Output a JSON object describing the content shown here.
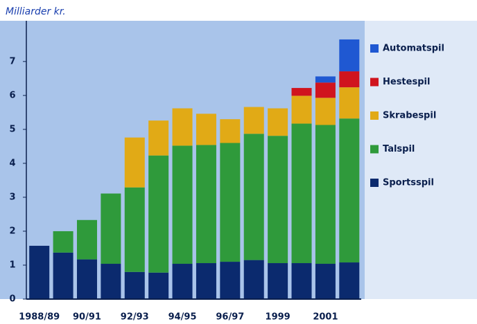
{
  "chart_data": {
    "type": "stacked_bar",
    "title": "Milliarder kr.",
    "categories": [
      "1988/89",
      null,
      "90/91",
      null,
      "92/93",
      null,
      "94/95",
      null,
      "96/97",
      null,
      "1999",
      null,
      "2001",
      null
    ],
    "series": [
      {
        "name": "Sportsspil",
        "color": "#0b2a6e",
        "values": [
          1.57,
          1.37,
          1.17,
          1.04,
          0.8,
          0.78,
          1.04,
          1.06,
          1.1,
          1.15,
          1.06,
          1.06,
          1.04,
          1.08
        ]
      },
      {
        "name": "Talspil",
        "color": "#2f9a3b",
        "values": [
          0,
          0.63,
          1.16,
          2.07,
          2.49,
          3.45,
          3.48,
          3.48,
          3.5,
          3.72,
          3.75,
          4.11,
          4.09,
          4.24
        ]
      },
      {
        "name": "Skrabespil",
        "color": "#e1aa16",
        "values": [
          0,
          0,
          0,
          0,
          1.47,
          1.03,
          1.1,
          0.92,
          0.7,
          0.79,
          0.81,
          0.82,
          0.8,
          0.92
        ]
      },
      {
        "name": "Hestespil",
        "color": "#d0141e",
        "values": [
          0,
          0,
          0,
          0,
          0,
          0,
          0,
          0,
          0,
          0,
          0,
          0.23,
          0.45,
          0.47
        ]
      },
      {
        "name": "Automatspil",
        "color": "#1f58d2",
        "values": [
          0,
          0,
          0,
          0,
          0,
          0,
          0,
          0,
          0,
          0,
          0,
          0,
          0.18,
          0.94
        ]
      }
    ],
    "ylim": [
      0,
      8.2
    ],
    "yticks": [
      0,
      1,
      2,
      3,
      4,
      5,
      6,
      7
    ]
  }
}
